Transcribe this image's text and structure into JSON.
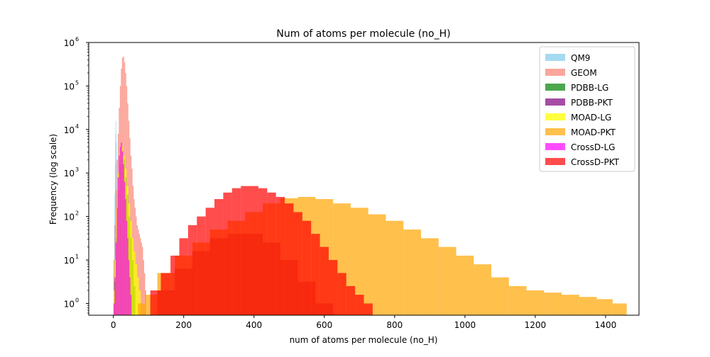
{
  "chart_data": {
    "type": "histogram",
    "title": "Num of atoms per molecule (no_H)",
    "xlabel": "num of atoms per molecule (no_H)",
    "ylabel": "Frequency (log scale)",
    "xlim": [
      -70,
      1495
    ],
    "ylim_log10": [
      -0.27,
      6.0
    ],
    "y_scale": "log",
    "grid": false,
    "legend_position": "top-right",
    "x_ticks": [
      0,
      200,
      400,
      600,
      800,
      1000,
      1200,
      1400
    ],
    "y_ticks": [
      {
        "exp": 0,
        "label_base": "10",
        "label_exp": "0"
      },
      {
        "exp": 1,
        "label_base": "10",
        "label_exp": "1"
      },
      {
        "exp": 2,
        "label_base": "10",
        "label_exp": "2"
      },
      {
        "exp": 3,
        "label_base": "10",
        "label_exp": "3"
      },
      {
        "exp": 4,
        "label_base": "10",
        "label_exp": "4"
      },
      {
        "exp": 5,
        "label_base": "10",
        "label_exp": "5"
      },
      {
        "exp": 6,
        "label_base": "10",
        "label_exp": "6"
      }
    ],
    "series": [
      {
        "name": "QM9",
        "color": "#87ceeb",
        "opacity": 0.75,
        "x": [
          1,
          2,
          3,
          4,
          5,
          6,
          7,
          8,
          9
        ],
        "log10_freq": [
          0.6,
          1.0,
          1.8,
          2.5,
          3.2,
          3.9,
          4.2,
          3.7,
          2.0
        ]
      },
      {
        "name": "GEOM",
        "color": "#fa8072",
        "opacity": 0.7,
        "x": [
          2,
          5,
          8,
          11,
          14,
          17,
          20,
          23,
          26,
          29,
          32,
          35,
          38,
          41,
          44,
          47,
          50,
          53,
          56,
          59,
          62,
          65,
          68,
          71,
          74,
          77,
          80,
          83,
          86,
          89,
          92
        ],
        "log10_freq": [
          1.0,
          1.8,
          2.6,
          3.3,
          3.9,
          4.5,
          5.0,
          5.4,
          5.65,
          5.68,
          5.55,
          5.3,
          5.0,
          4.6,
          4.2,
          3.8,
          3.4,
          3.1,
          2.7,
          2.4,
          2.2,
          2.0,
          1.8,
          1.7,
          1.6,
          1.5,
          1.4,
          1.3,
          1.0,
          0.7,
          0.3
        ]
      },
      {
        "name": "PDBB-LG",
        "color": "#008000",
        "opacity": 0.7,
        "x": [
          5,
          10,
          15,
          20,
          25,
          30,
          35,
          40,
          45,
          50,
          55,
          60
        ],
        "log10_freq": [
          0.5,
          1.5,
          2.6,
          3.2,
          3.5,
          3.3,
          2.9,
          2.5,
          2.0,
          1.5,
          1.0,
          0.4
        ]
      },
      {
        "name": "PDBB-PKT",
        "color": "#800080",
        "opacity": 0.7,
        "x": [
          150,
          200,
          250,
          300,
          350,
          400,
          450,
          500,
          550,
          600
        ],
        "log10_freq": [
          0.3,
          0.8,
          1.2,
          1.5,
          1.6,
          1.6,
          1.4,
          1.0,
          0.5,
          0.0
        ]
      },
      {
        "name": "MOAD-LG",
        "color": "#ffff00",
        "opacity": 0.75,
        "x": [
          2,
          5,
          10,
          15,
          20,
          25,
          30,
          35,
          40,
          45,
          50,
          55,
          60,
          65,
          70,
          75
        ],
        "log10_freq": [
          0.3,
          1.0,
          2.2,
          3.0,
          3.5,
          3.6,
          3.4,
          3.1,
          2.7,
          2.3,
          1.9,
          1.5,
          1.2,
          0.9,
          0.6,
          0.3
        ]
      },
      {
        "name": "MOAD-PKT",
        "color": "#ffa500",
        "opacity": 0.7,
        "x": [
          80,
          100,
          150,
          200,
          250,
          300,
          350,
          400,
          450,
          500,
          550,
          600,
          650,
          700,
          750,
          800,
          850,
          900,
          950,
          1000,
          1050,
          1100,
          1150,
          1200,
          1250,
          1300,
          1350,
          1400,
          1440
        ],
        "log10_freq": [
          0.0,
          0.2,
          0.7,
          1.1,
          1.4,
          1.7,
          1.9,
          2.1,
          2.3,
          2.42,
          2.45,
          2.4,
          2.3,
          2.2,
          2.05,
          1.9,
          1.7,
          1.5,
          1.3,
          1.1,
          0.9,
          0.6,
          0.4,
          0.3,
          0.25,
          0.2,
          0.15,
          0.1,
          0.0
        ]
      },
      {
        "name": "CrossD-LG",
        "color": "#ff00ff",
        "opacity": 0.7,
        "x": [
          2,
          5,
          8,
          11,
          14,
          17,
          20,
          23,
          26,
          29,
          32,
          35,
          38,
          41,
          44,
          47,
          50
        ],
        "log10_freq": [
          0.0,
          0.6,
          1.4,
          2.2,
          2.9,
          3.4,
          3.6,
          3.7,
          3.5,
          3.2,
          2.8,
          2.4,
          1.9,
          1.5,
          1.0,
          0.6,
          0.2
        ]
      },
      {
        "name": "CrossD-PKT",
        "color": "#ff0000",
        "opacity": 0.7,
        "x": [
          120,
          150,
          175,
          200,
          225,
          250,
          275,
          300,
          325,
          350,
          375,
          400,
          425,
          450,
          475,
          500,
          525,
          550,
          575,
          600,
          625,
          650,
          675,
          700,
          725
        ],
        "log10_freq": [
          0.3,
          0.7,
          1.1,
          1.5,
          1.8,
          2.0,
          2.2,
          2.4,
          2.55,
          2.65,
          2.7,
          2.7,
          2.65,
          2.55,
          2.45,
          2.3,
          2.1,
          1.9,
          1.6,
          1.3,
          1.0,
          0.7,
          0.4,
          0.2,
          0.0
        ]
      }
    ]
  }
}
